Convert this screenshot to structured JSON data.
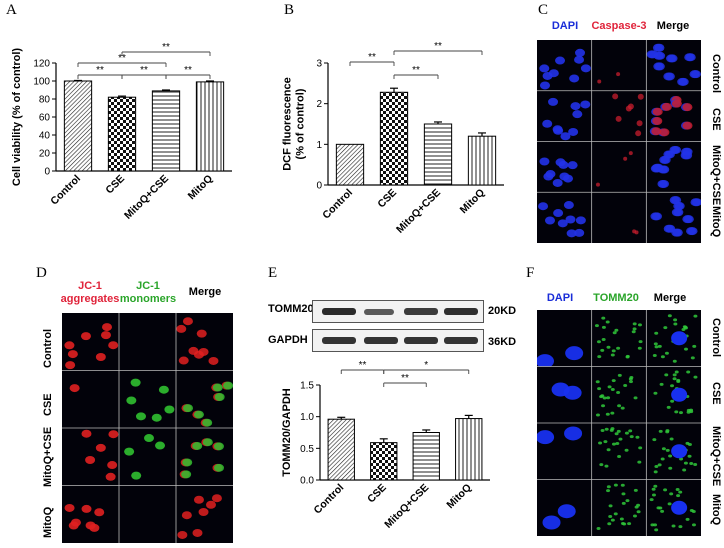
{
  "panels": {
    "A": {
      "letter": "A"
    },
    "B": {
      "letter": "B"
    },
    "C": {
      "letter": "C",
      "headers": [
        "DAPI",
        "Caspase-3",
        "Merge"
      ],
      "rows": [
        "Control",
        "CSE",
        "MitoQ+CSE",
        "MitoQ"
      ],
      "colors": {
        "dapi": "#1a2dd8",
        "caspase": "#e0233a",
        "merge": "#000000"
      }
    },
    "D": {
      "letter": "D",
      "headers": [
        "JC-1\naggregates",
        "JC-1\nmonomers",
        "Merge"
      ],
      "rows": [
        "Control",
        "CSE",
        "MitoQ+CSE",
        "MitoQ"
      ],
      "colors": {
        "aggregates": "#e0233a",
        "monomers": "#2aa52a",
        "merge": "#000000"
      }
    },
    "E": {
      "letter": "E",
      "blot": {
        "bands": [
          "TOMM20",
          "GAPDH"
        ],
        "sizes": [
          "20KD",
          "36KD"
        ]
      }
    },
    "F": {
      "letter": "F",
      "headers": [
        "DAPI",
        "TOMM20",
        "Merge"
      ],
      "rows": [
        "Control",
        "CSE",
        "MitoQ+CSE",
        "MitoQ"
      ],
      "colors": {
        "dapi": "#1a2dd8",
        "tomm20": "#2aa52a",
        "merge": "#000000"
      }
    }
  },
  "chart_data": [
    {
      "type": "bar",
      "panel": "A",
      "categories": [
        "Control",
        "CSE",
        "MitoQ+CSE",
        "MitoQ"
      ],
      "values": [
        100,
        82,
        89,
        99
      ],
      "errors": [
        0.6,
        1.2,
        1.0,
        1.0
      ],
      "ylabel": "Cell viability (% of control)",
      "ylim": [
        0,
        120
      ],
      "yticks": [
        "0",
        "20",
        "40",
        "60",
        "80",
        "100",
        "120"
      ],
      "significance": [
        {
          "from": 0,
          "to": 1,
          "label": "**"
        },
        {
          "from": 0,
          "to": 2,
          "label": "**"
        },
        {
          "from": 1,
          "to": 3,
          "label": "**"
        },
        {
          "from": 1,
          "to": 2,
          "label": "**"
        },
        {
          "from": 2,
          "to": 3,
          "label": "**"
        }
      ]
    },
    {
      "type": "bar",
      "panel": "B",
      "categories": [
        "Control",
        "CSE",
        "MitoQ+CSE",
        "MitoQ"
      ],
      "values": [
        1.0,
        2.28,
        1.5,
        1.2
      ],
      "errors": [
        0.0,
        0.1,
        0.05,
        0.08
      ],
      "ylabel": "DCF fluorescence\n(% of control)",
      "ylim": [
        0,
        3
      ],
      "yticks": [
        "0",
        "1",
        "2",
        "3"
      ],
      "significance": [
        {
          "from": 0,
          "to": 1,
          "label": "**"
        },
        {
          "from": 1,
          "to": 3,
          "label": "**"
        },
        {
          "from": 1,
          "to": 2,
          "label": "**"
        }
      ]
    },
    {
      "type": "bar",
      "panel": "E",
      "categories": [
        "Control",
        "CSE",
        "MitoQ+CSE",
        "MitoQ"
      ],
      "values": [
        0.96,
        0.59,
        0.75,
        0.97
      ],
      "errors": [
        0.03,
        0.06,
        0.04,
        0.05
      ],
      "ylabel": "TOMM20/GAPDH",
      "ylim": [
        0,
        1.5
      ],
      "yticks": [
        "0.0",
        "0.5",
        "1.0",
        "1.5"
      ],
      "significance": [
        {
          "from": 0,
          "to": 1,
          "label": "**"
        },
        {
          "from": 1,
          "to": 3,
          "label": "*"
        },
        {
          "from": 1,
          "to": 2,
          "label": "**"
        }
      ]
    }
  ]
}
